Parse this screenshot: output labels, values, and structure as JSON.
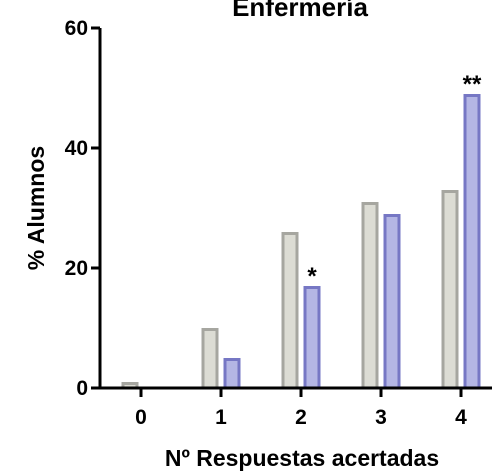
{
  "chart_data": {
    "type": "bar",
    "title": "Enfermería",
    "xlabel": "Nº Respuestas acertadas",
    "ylabel": "% Alumnos",
    "categories": [
      "0",
      "1",
      "2",
      "3",
      "4"
    ],
    "ylim": [
      0,
      60
    ],
    "yticks": [
      "0",
      "20",
      "40",
      "60"
    ],
    "grid": false,
    "series": [
      {
        "values": [
          1,
          10,
          26,
          31,
          33
        ],
        "color": "#dcdcd4",
        "stroke": "#a6a6a0"
      },
      {
        "values": [
          0,
          5,
          17,
          29,
          49
        ],
        "color": "#b4b6e4",
        "stroke": "#7677c4"
      }
    ],
    "annotations": [
      {
        "text": "*",
        "category": "2",
        "series": 1
      },
      {
        "text": "**",
        "category": "4",
        "series": 1
      }
    ]
  }
}
